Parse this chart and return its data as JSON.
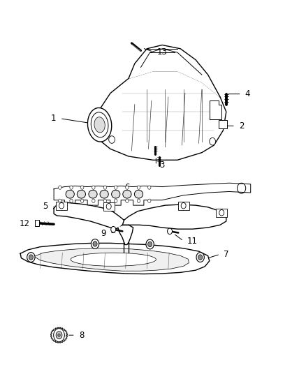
{
  "background_color": "#ffffff",
  "fig_width": 4.38,
  "fig_height": 5.33,
  "dpi": 100,
  "line_color": "#000000",
  "text_color": "#000000"
}
